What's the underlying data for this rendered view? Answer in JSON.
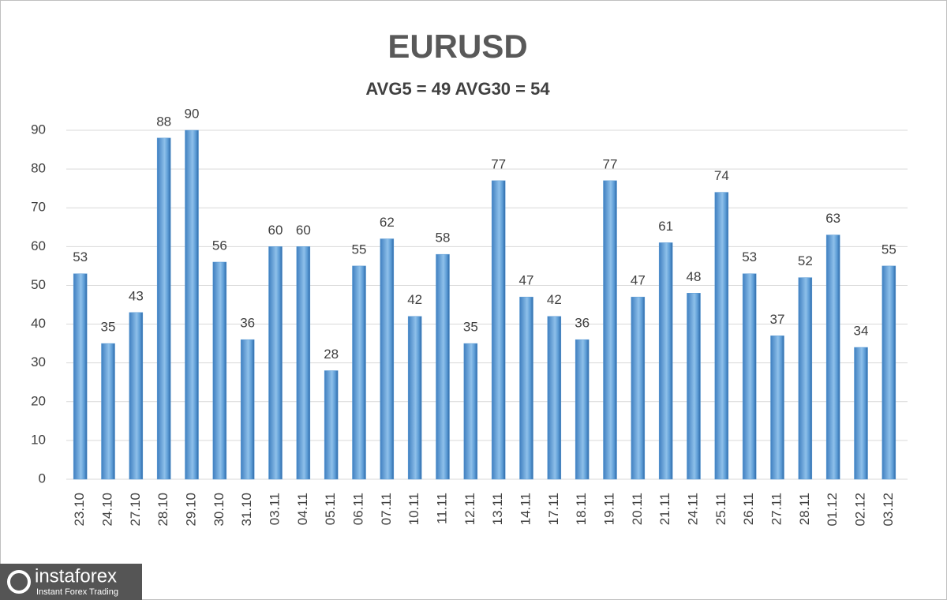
{
  "chart_data": {
    "type": "bar",
    "title": "EURUSD",
    "subtitle": "AVG5 = 49 AVG30 = 54",
    "categories": [
      "23.10",
      "24.10",
      "27.10",
      "28.10",
      "29.10",
      "30.10",
      "31.10",
      "03.11",
      "04.11",
      "05.11",
      "06.11",
      "07.11",
      "10.11",
      "11.11",
      "12.11",
      "13.11",
      "14.11",
      "17.11",
      "18.11",
      "19.11",
      "20.11",
      "21.11",
      "24.11",
      "25.11",
      "26.11",
      "27.11",
      "28.11",
      "01.12",
      "02.12",
      "03.12"
    ],
    "values": [
      53,
      35,
      43,
      88,
      90,
      56,
      36,
      60,
      60,
      28,
      55,
      62,
      42,
      58,
      35,
      77,
      47,
      42,
      36,
      77,
      47,
      61,
      48,
      74,
      53,
      37,
      52,
      63,
      34,
      55
    ],
    "color": "#5b9bd5",
    "ylim": [
      0,
      90
    ],
    "yticks": [
      0,
      10,
      20,
      30,
      40,
      50,
      60,
      70,
      80,
      90
    ],
    "grid": true
  },
  "logo": {
    "name": "instaforex",
    "tagline": "Instant Forex Trading"
  }
}
